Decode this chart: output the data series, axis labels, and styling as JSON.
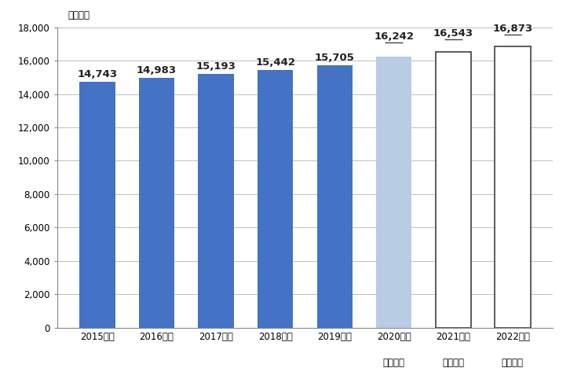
{
  "categories_line1": [
    "2015年度",
    "2016年度",
    "2017年度",
    "2018年度",
    "2019年度",
    "2020年度",
    "2021年度",
    "2022年度"
  ],
  "categories_line2": [
    "",
    "",
    "",
    "",
    "",
    "（見込）",
    "（予測）",
    "（予測）"
  ],
  "values": [
    14743,
    14983,
    15193,
    15442,
    15705,
    16242,
    16543,
    16873
  ],
  "labels": [
    "14,743",
    "14,983",
    "15,193",
    "15,442",
    "15,705",
    "16,242",
    "16,543",
    "16,873"
  ],
  "bar_colors": [
    "#4472c4",
    "#4472c4",
    "#4472c4",
    "#4472c4",
    "#4472c4",
    "#b8cce4",
    "#ffffff",
    "#ffffff"
  ],
  "bar_edgecolors": [
    "none",
    "none",
    "none",
    "none",
    "none",
    "none",
    "#404040",
    "#404040"
  ],
  "ylim": [
    0,
    18000
  ],
  "yticks": [
    0,
    2000,
    4000,
    6000,
    8000,
    10000,
    12000,
    14000,
    16000,
    18000
  ],
  "ylabel": "（億円）",
  "background_color": "#ffffff",
  "grid_color": "#c0c0c0",
  "label_fontsize": 9.5,
  "tick_fontsize": 8.5,
  "note_fontsize": 8
}
